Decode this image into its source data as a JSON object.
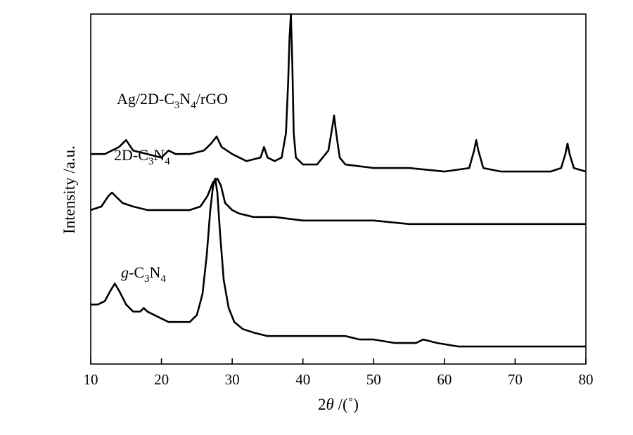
{
  "chart_data": {
    "type": "line",
    "title": "",
    "xlabel": {
      "pre": "2",
      "theta": "θ",
      "post": " /(˚)"
    },
    "ylabel": "Intensity /a.u.",
    "xlim": [
      10,
      80
    ],
    "xticks": [
      "10",
      "20",
      "30",
      "40",
      "50",
      "60",
      "70",
      "80"
    ],
    "yticks_shown": false,
    "grid": false,
    "legend": "none",
    "line_color": "#000000",
    "series": [
      {
        "name": "Ag/2D-C3N4/rGO",
        "label_parts": [
          {
            "t": "Ag/2D-C",
            "sub": false
          },
          {
            "t": "3",
            "sub": true
          },
          {
            "t": "N",
            "sub": false
          },
          {
            "t": "4",
            "sub": true
          },
          {
            "t": "/rGO",
            "sub": false
          }
        ],
        "x": [
          10,
          12,
          14,
          15,
          16,
          18,
          20,
          21,
          22,
          24,
          26,
          27,
          27.8,
          28.5,
          30,
          32,
          34,
          34.5,
          35,
          36,
          37,
          37.6,
          37.9,
          38.1,
          38.3,
          38.5,
          38.7,
          39,
          40,
          42,
          43.6,
          44.1,
          44.4,
          44.7,
          45.2,
          46,
          50,
          55,
          60,
          63.5,
          64.2,
          64.5,
          64.8,
          65.5,
          68,
          70,
          75,
          76.5,
          77.1,
          77.4,
          77.7,
          78.3,
          80
        ],
        "y": [
          0.6,
          0.6,
          0.62,
          0.64,
          0.61,
          0.6,
          0.59,
          0.61,
          0.6,
          0.6,
          0.61,
          0.63,
          0.65,
          0.62,
          0.6,
          0.58,
          0.59,
          0.62,
          0.59,
          0.58,
          0.59,
          0.66,
          0.8,
          0.93,
          1.0,
          0.86,
          0.66,
          0.59,
          0.57,
          0.57,
          0.61,
          0.67,
          0.71,
          0.66,
          0.59,
          0.57,
          0.56,
          0.56,
          0.55,
          0.56,
          0.61,
          0.64,
          0.61,
          0.56,
          0.55,
          0.55,
          0.55,
          0.56,
          0.6,
          0.63,
          0.6,
          0.56,
          0.55
        ]
      },
      {
        "name": "2D-C3N4",
        "label_parts": [
          {
            "t": "2D-C",
            "sub": false
          },
          {
            "t": "3",
            "sub": true
          },
          {
            "t": "N",
            "sub": false
          },
          {
            "t": "4",
            "sub": true
          }
        ],
        "x": [
          10,
          11.5,
          12.5,
          13,
          13.5,
          14.5,
          16,
          18,
          20,
          22,
          24,
          25.5,
          26.5,
          27.3,
          27.9,
          28.4,
          29,
          30,
          31,
          33,
          36,
          40,
          45,
          50,
          55,
          60,
          65,
          70,
          75,
          80
        ],
        "y": [
          0.44,
          0.45,
          0.48,
          0.49,
          0.48,
          0.46,
          0.45,
          0.44,
          0.44,
          0.44,
          0.44,
          0.45,
          0.48,
          0.52,
          0.53,
          0.51,
          0.46,
          0.44,
          0.43,
          0.42,
          0.42,
          0.41,
          0.41,
          0.41,
          0.4,
          0.4,
          0.4,
          0.4,
          0.4,
          0.4
        ]
      },
      {
        "name": "g-C3N4",
        "label_parts": [
          {
            "t": "g",
            "sub": false,
            "italic": true
          },
          {
            "t": "-C",
            "sub": false
          },
          {
            "t": "3",
            "sub": true
          },
          {
            "t": "N",
            "sub": false
          },
          {
            "t": "4",
            "sub": true
          }
        ],
        "x": [
          10,
          11,
          12,
          12.8,
          13.4,
          14,
          15,
          16,
          17,
          17.5,
          18,
          19,
          20,
          21,
          22,
          23,
          24,
          25,
          25.8,
          26.4,
          26.9,
          27.3,
          27.6,
          27.9,
          28.3,
          28.8,
          29.5,
          30.3,
          31.5,
          33,
          35,
          38,
          40,
          42,
          44,
          46,
          48,
          50,
          53,
          56,
          57,
          59,
          62,
          65,
          70,
          75,
          80
        ],
        "y": [
          0.17,
          0.17,
          0.18,
          0.21,
          0.23,
          0.21,
          0.17,
          0.15,
          0.15,
          0.16,
          0.15,
          0.14,
          0.13,
          0.12,
          0.12,
          0.12,
          0.12,
          0.14,
          0.2,
          0.31,
          0.44,
          0.51,
          0.53,
          0.49,
          0.37,
          0.24,
          0.16,
          0.12,
          0.1,
          0.09,
          0.08,
          0.08,
          0.08,
          0.08,
          0.08,
          0.08,
          0.07,
          0.07,
          0.06,
          0.06,
          0.07,
          0.06,
          0.05,
          0.05,
          0.05,
          0.05,
          0.05
        ]
      }
    ]
  }
}
